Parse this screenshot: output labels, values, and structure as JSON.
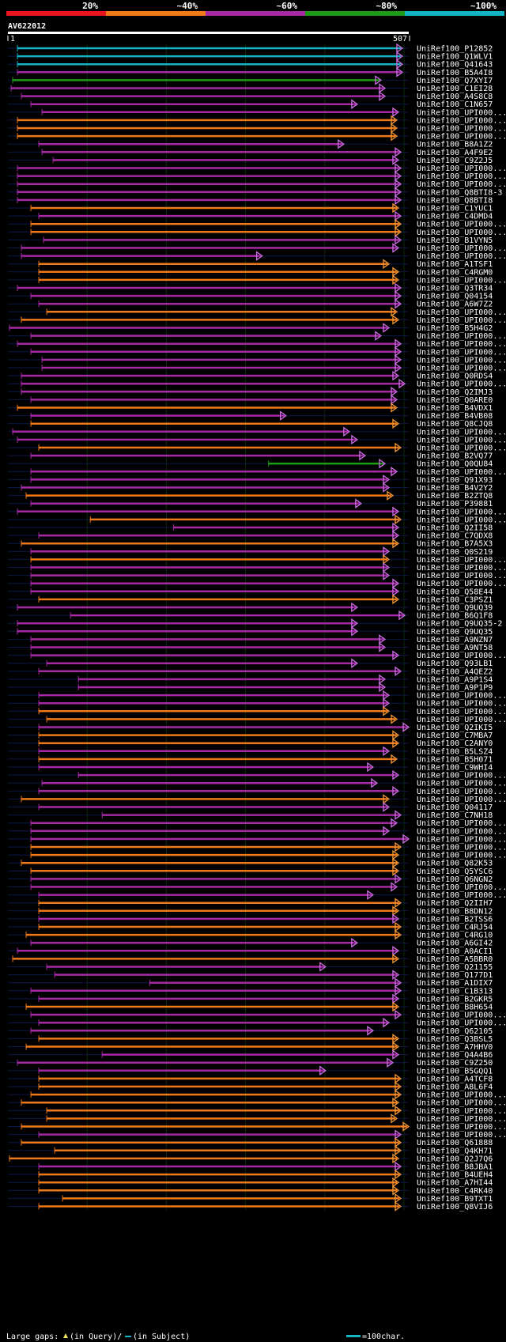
{
  "chart_data": {
    "type": "alignment-overview",
    "query_name": "AV622012",
    "query_length": 507,
    "axis_start_label": "1",
    "axis_end_label": "507",
    "identity_scale": [
      {
        "label": "20%",
        "color": "#e8141e"
      },
      {
        "label": "~40%",
        "color": "#f07a18"
      },
      {
        "label": "~60%",
        "color": "#a62aa4"
      },
      {
        "label": "~80%",
        "color": "#1e9a14"
      },
      {
        "label": "~100%",
        "color": "#14b4c4"
      }
    ],
    "legend": {
      "gaps_text": "Large gaps:",
      "query_text": "(in Query)/",
      "subject_text": "(in Subject)",
      "scale_text": "=100char."
    },
    "hits": [
      {
        "id": "UniRef100_P12852",
        "start": 13,
        "end": 497,
        "identity": 100
      },
      {
        "id": "UniRef100_Q1WLV1",
        "start": 13,
        "end": 497,
        "identity": 100
      },
      {
        "id": "UniRef100_Q41643",
        "start": 13,
        "end": 497,
        "identity": 100
      },
      {
        "id": "UniRef100_B5A4I8",
        "start": 13,
        "end": 497,
        "identity": 60
      },
      {
        "id": "UniRef100_Q7XYI7",
        "start": 7,
        "end": 470,
        "identity": 80
      },
      {
        "id": "UniRef100_C1EI28",
        "start": 5,
        "end": 475,
        "identity": 60
      },
      {
        "id": "UniRef100_A4S8C8",
        "start": 18,
        "end": 475,
        "identity": 60
      },
      {
        "id": "UniRef100_C1N657",
        "start": 30,
        "end": 440,
        "identity": 60
      },
      {
        "id": "UniRef100_UPI000...",
        "start": 44,
        "end": 492,
        "identity": 60
      },
      {
        "id": "UniRef100_UPI000...",
        "start": 13,
        "end": 490,
        "identity": 40
      },
      {
        "id": "UniRef100_UPI000...",
        "start": 13,
        "end": 490,
        "identity": 40
      },
      {
        "id": "UniRef100_UPI000...",
        "start": 13,
        "end": 490,
        "identity": 40
      },
      {
        "id": "UniRef100_B8A1Z2",
        "start": 40,
        "end": 423,
        "identity": 60
      },
      {
        "id": "UniRef100_A4F9E2",
        "start": 44,
        "end": 495,
        "identity": 60
      },
      {
        "id": "UniRef100_C9Z2J5",
        "start": 58,
        "end": 492,
        "identity": 60
      },
      {
        "id": "UniRef100_UPI000...",
        "start": 13,
        "end": 495,
        "identity": 60
      },
      {
        "id": "UniRef100_UPI000...",
        "start": 13,
        "end": 495,
        "identity": 60
      },
      {
        "id": "UniRef100_UPI000...",
        "start": 13,
        "end": 495,
        "identity": 60
      },
      {
        "id": "UniRef100_Q8BTI8-3",
        "start": 13,
        "end": 495,
        "identity": 60
      },
      {
        "id": "UniRef100_Q8BTI8",
        "start": 13,
        "end": 495,
        "identity": 60
      },
      {
        "id": "UniRef100_C1YUC1",
        "start": 30,
        "end": 492,
        "identity": 40
      },
      {
        "id": "UniRef100_C4DMD4",
        "start": 40,
        "end": 495,
        "identity": 60
      },
      {
        "id": "UniRef100_UPI000...",
        "start": 30,
        "end": 495,
        "identity": 40
      },
      {
        "id": "UniRef100_UPI000...",
        "start": 30,
        "end": 495,
        "identity": 40
      },
      {
        "id": "UniRef100_B1VYN5",
        "start": 46,
        "end": 495,
        "identity": 60
      },
      {
        "id": "UniRef100_UPI000...",
        "start": 18,
        "end": 492,
        "identity": 60
      },
      {
        "id": "UniRef100_UPI000...",
        "start": 18,
        "end": 320,
        "identity": 60
      },
      {
        "id": "UniRef100_A1TSF1",
        "start": 40,
        "end": 480,
        "identity": 40
      },
      {
        "id": "UniRef100_C4RGM0",
        "start": 40,
        "end": 492,
        "identity": 40
      },
      {
        "id": "UniRef100_UPI000...",
        "start": 40,
        "end": 492,
        "identity": 40
      },
      {
        "id": "UniRef100_Q3TR34",
        "start": 13,
        "end": 495,
        "identity": 60
      },
      {
        "id": "UniRef100_Q04154",
        "start": 30,
        "end": 495,
        "identity": 60
      },
      {
        "id": "UniRef100_A6W7Z2",
        "start": 40,
        "end": 495,
        "identity": 60
      },
      {
        "id": "UniRef100_UPI000...",
        "start": 50,
        "end": 490,
        "identity": 40
      },
      {
        "id": "UniRef100_UPI000...",
        "start": 18,
        "end": 492,
        "identity": 40
      },
      {
        "id": "UniRef100_B5H4G2",
        "start": 3,
        "end": 480,
        "identity": 60
      },
      {
        "id": "UniRef100_UPI000...",
        "start": 30,
        "end": 470,
        "identity": 60
      },
      {
        "id": "UniRef100_UPI000...",
        "start": 13,
        "end": 495,
        "identity": 60
      },
      {
        "id": "UniRef100_UPI000...",
        "start": 30,
        "end": 495,
        "identity": 60
      },
      {
        "id": "UniRef100_UPI000...",
        "start": 44,
        "end": 495,
        "identity": 60
      },
      {
        "id": "UniRef100_UPI000...",
        "start": 44,
        "end": 495,
        "identity": 60
      },
      {
        "id": "UniRef100_Q0RDS4",
        "start": 18,
        "end": 492,
        "identity": 60
      },
      {
        "id": "UniRef100_UPI000...",
        "start": 18,
        "end": 500,
        "identity": 60
      },
      {
        "id": "UniRef100_Q2IMJ3",
        "start": 18,
        "end": 490,
        "identity": 60
      },
      {
        "id": "UniRef100_Q0ARE0",
        "start": 30,
        "end": 490,
        "identity": 60
      },
      {
        "id": "UniRef100_B4VDX1",
        "start": 13,
        "end": 490,
        "identity": 40
      },
      {
        "id": "UniRef100_B4VB08",
        "start": 30,
        "end": 350,
        "identity": 60
      },
      {
        "id": "UniRef100_Q8CJQ8",
        "start": 30,
        "end": 492,
        "identity": 40
      },
      {
        "id": "UniRef100_UPI000...",
        "start": 7,
        "end": 430,
        "identity": 60
      },
      {
        "id": "UniRef100_UPI000...",
        "start": 13,
        "end": 440,
        "identity": 60
      },
      {
        "id": "UniRef100_UPI000...",
        "start": 40,
        "end": 495,
        "identity": 40
      },
      {
        "id": "UniRef100_B2VQ77",
        "start": 30,
        "end": 450,
        "identity": 60
      },
      {
        "id": "UniRef100_Q0QU84",
        "start": 330,
        "end": 475,
        "identity": 80
      },
      {
        "id": "UniRef100_UPI000...",
        "start": 30,
        "end": 490,
        "identity": 60
      },
      {
        "id": "UniRef100_Q91X93",
        "start": 30,
        "end": 480,
        "identity": 60
      },
      {
        "id": "UniRef100_B4V2Y2",
        "start": 18,
        "end": 480,
        "identity": 60
      },
      {
        "id": "UniRef100_B2ZTQ8",
        "start": 24,
        "end": 485,
        "identity": 40
      },
      {
        "id": "UniRef100_P39881",
        "start": 30,
        "end": 445,
        "identity": 60
      },
      {
        "id": "UniRef100_UPI000...",
        "start": 13,
        "end": 492,
        "identity": 60
      },
      {
        "id": "UniRef100_UPI000...",
        "start": 105,
        "end": 495,
        "identity": 40
      },
      {
        "id": "UniRef100_Q2II58",
        "start": 210,
        "end": 492,
        "identity": 60
      },
      {
        "id": "UniRef100_C7QDX8",
        "start": 40,
        "end": 492,
        "identity": 60
      },
      {
        "id": "UniRef100_B7A5X3",
        "start": 18,
        "end": 492,
        "identity": 40
      },
      {
        "id": "UniRef100_Q0S219",
        "start": 30,
        "end": 480,
        "identity": 60
      },
      {
        "id": "UniRef100_UPI000...",
        "start": 30,
        "end": 480,
        "identity": 40
      },
      {
        "id": "UniRef100_UPI000...",
        "start": 30,
        "end": 480,
        "identity": 60
      },
      {
        "id": "UniRef100_UPI000...",
        "start": 30,
        "end": 480,
        "identity": 60
      },
      {
        "id": "UniRef100_UPI000...",
        "start": 30,
        "end": 492,
        "identity": 60
      },
      {
        "id": "UniRef100_Q58E44",
        "start": 30,
        "end": 492,
        "identity": 60
      },
      {
        "id": "UniRef100_C3PSZ1",
        "start": 40,
        "end": 492,
        "identity": 40
      },
      {
        "id": "UniRef100_Q9UQ39",
        "start": 13,
        "end": 440,
        "identity": 60
      },
      {
        "id": "UniRef100_B6Q1F8",
        "start": 80,
        "end": 500,
        "identity": 60
      },
      {
        "id": "UniRef100_Q9UQ35-2",
        "start": 13,
        "end": 440,
        "identity": 60
      },
      {
        "id": "UniRef100_Q9UQ35",
        "start": 13,
        "end": 440,
        "identity": 60
      },
      {
        "id": "UniRef100_A9NZN7",
        "start": 30,
        "end": 475,
        "identity": 60
      },
      {
        "id": "UniRef100_A9NT58",
        "start": 30,
        "end": 475,
        "identity": 60
      },
      {
        "id": "UniRef100_UPI000...",
        "start": 30,
        "end": 492,
        "identity": 60
      },
      {
        "id": "UniRef100_Q93LB1",
        "start": 50,
        "end": 440,
        "identity": 60
      },
      {
        "id": "UniRef100_A4QEZ2",
        "start": 40,
        "end": 495,
        "identity": 60
      },
      {
        "id": "UniRef100_A9P1S4",
        "start": 90,
        "end": 475,
        "identity": 60
      },
      {
        "id": "UniRef100_A9P1P9",
        "start": 90,
        "end": 475,
        "identity": 60
      },
      {
        "id": "UniRef100_UPI000...",
        "start": 40,
        "end": 480,
        "identity": 60
      },
      {
        "id": "UniRef100_UPI000...",
        "start": 40,
        "end": 480,
        "identity": 60
      },
      {
        "id": "UniRef100_UPI000...",
        "start": 40,
        "end": 480,
        "identity": 40
      },
      {
        "id": "UniRef100_UPI000...",
        "start": 50,
        "end": 490,
        "identity": 40
      },
      {
        "id": "UniRef100_Q2IKI5",
        "start": 40,
        "end": 505,
        "identity": 60
      },
      {
        "id": "UniRef100_C7MBA7",
        "start": 40,
        "end": 492,
        "identity": 40
      },
      {
        "id": "UniRef100_C2ANY0",
        "start": 40,
        "end": 492,
        "identity": 40
      },
      {
        "id": "UniRef100_B5LSZ4",
        "start": 40,
        "end": 480,
        "identity": 60
      },
      {
        "id": "UniRef100_B5H071",
        "start": 40,
        "end": 490,
        "identity": 40
      },
      {
        "id": "UniRef100_C9WHI4",
        "start": 40,
        "end": 460,
        "identity": 60
      },
      {
        "id": "UniRef100_UPI000...",
        "start": 90,
        "end": 492,
        "identity": 60
      },
      {
        "id": "UniRef100_UPI000...",
        "start": 44,
        "end": 465,
        "identity": 60
      },
      {
        "id": "UniRef100_UPI000...",
        "start": 40,
        "end": 492,
        "identity": 60
      },
      {
        "id": "UniRef100_UPI000...",
        "start": 18,
        "end": 480,
        "identity": 40
      },
      {
        "id": "UniRef100_Q04117",
        "start": 40,
        "end": 480,
        "identity": 60
      },
      {
        "id": "UniRef100_C7NH18",
        "start": 120,
        "end": 495,
        "identity": 60
      },
      {
        "id": "UniRef100_UPI000...",
        "start": 30,
        "end": 490,
        "identity": 60
      },
      {
        "id": "UniRef100_UPI000...",
        "start": 30,
        "end": 480,
        "identity": 60
      },
      {
        "id": "UniRef100_UPI000...",
        "start": 30,
        "end": 505,
        "identity": 60
      },
      {
        "id": "UniRef100_UPI000...",
        "start": 30,
        "end": 495,
        "identity": 40
      },
      {
        "id": "UniRef100_UPI000...",
        "start": 30,
        "end": 492,
        "identity": 40
      },
      {
        "id": "UniRef100_Q82K53",
        "start": 18,
        "end": 492,
        "identity": 40
      },
      {
        "id": "UniRef100_Q5YSC6",
        "start": 30,
        "end": 492,
        "identity": 40
      },
      {
        "id": "UniRef100_Q6NGN2",
        "start": 30,
        "end": 495,
        "identity": 60
      },
      {
        "id": "UniRef100_UPI000...",
        "start": 30,
        "end": 490,
        "identity": 60
      },
      {
        "id": "UniRef100_UPI000...",
        "start": 40,
        "end": 460,
        "identity": 60
      },
      {
        "id": "UniRef100_Q2IIH7",
        "start": 40,
        "end": 495,
        "identity": 40
      },
      {
        "id": "UniRef100_B8DN12",
        "start": 40,
        "end": 492,
        "identity": 40
      },
      {
        "id": "UniRef100_B2TSS6",
        "start": 40,
        "end": 492,
        "identity": 60
      },
      {
        "id": "UniRef100_C4RJ54",
        "start": 40,
        "end": 495,
        "identity": 40
      },
      {
        "id": "UniRef100_C4RG10",
        "start": 24,
        "end": 495,
        "identity": 40
      },
      {
        "id": "UniRef100_A6GI42",
        "start": 30,
        "end": 440,
        "identity": 60
      },
      {
        "id": "UniRef100_A0ACI1",
        "start": 13,
        "end": 492,
        "identity": 60
      },
      {
        "id": "UniRef100_A5BBR0",
        "start": 7,
        "end": 492,
        "identity": 40
      },
      {
        "id": "UniRef100_Q21155",
        "start": 50,
        "end": 400,
        "identity": 60
      },
      {
        "id": "UniRef100_Q177D1",
        "start": 60,
        "end": 492,
        "identity": 60
      },
      {
        "id": "UniRef100_A1DIX7",
        "start": 180,
        "end": 495,
        "identity": 60
      },
      {
        "id": "UniRef100_C1B313",
        "start": 30,
        "end": 495,
        "identity": 60
      },
      {
        "id": "UniRef100_B2GKR5",
        "start": 40,
        "end": 492,
        "identity": 60
      },
      {
        "id": "UniRef100_B8H654",
        "start": 24,
        "end": 492,
        "identity": 40
      },
      {
        "id": "UniRef100_UPI000...",
        "start": 30,
        "end": 495,
        "identity": 60
      },
      {
        "id": "UniRef100_UPI000...",
        "start": 40,
        "end": 480,
        "identity": 60
      },
      {
        "id": "UniRef100_Q62105",
        "start": 30,
        "end": 460,
        "identity": 60
      },
      {
        "id": "UniRef100_Q3BSL5",
        "start": 40,
        "end": 492,
        "identity": 40
      },
      {
        "id": "UniRef100_A7HHV0",
        "start": 24,
        "end": 492,
        "identity": 40
      },
      {
        "id": "UniRef100_Q4A4B6",
        "start": 120,
        "end": 492,
        "identity": 60
      },
      {
        "id": "UniRef100_C9Z250",
        "start": 13,
        "end": 485,
        "identity": 60
      },
      {
        "id": "UniRef100_B5GQQ1",
        "start": 40,
        "end": 400,
        "identity": 60
      },
      {
        "id": "UniRef100_A4TCF8",
        "start": 40,
        "end": 495,
        "identity": 40
      },
      {
        "id": "UniRef100_A8L6F4",
        "start": 40,
        "end": 495,
        "identity": 40
      },
      {
        "id": "UniRef100_UPI000...",
        "start": 30,
        "end": 495,
        "identity": 40
      },
      {
        "id": "UniRef100_UPI000...",
        "start": 18,
        "end": 492,
        "identity": 40
      },
      {
        "id": "UniRef100_UPI000...",
        "start": 50,
        "end": 495,
        "identity": 40
      },
      {
        "id": "UniRef100_UPI000...",
        "start": 50,
        "end": 490,
        "identity": 40
      },
      {
        "id": "UniRef100_UPI000...",
        "start": 18,
        "end": 505,
        "identity": 40
      },
      {
        "id": "UniRef100_UPI000...",
        "start": 40,
        "end": 495,
        "identity": 60
      },
      {
        "id": "UniRef100_Q61888",
        "start": 18,
        "end": 495,
        "identity": 40
      },
      {
        "id": "UniRef100_Q4KH71",
        "start": 60,
        "end": 495,
        "identity": 40
      },
      {
        "id": "UniRef100_Q2J7Q6",
        "start": 3,
        "end": 492,
        "identity": 40
      },
      {
        "id": "UniRef100_B8JBA1",
        "start": 40,
        "end": 495,
        "identity": 60
      },
      {
        "id": "UniRef100_B4UEH4",
        "start": 40,
        "end": 495,
        "identity": 40
      },
      {
        "id": "UniRef100_A7HI44",
        "start": 40,
        "end": 492,
        "identity": 40
      },
      {
        "id": "UniRef100_C4RK40",
        "start": 40,
        "end": 492,
        "identity": 40
      },
      {
        "id": "UniRef100_B9TXT1",
        "start": 70,
        "end": 495,
        "identity": 40
      },
      {
        "id": "UniRef100_Q8VIJ6",
        "start": 40,
        "end": 495,
        "identity": 40
      }
    ]
  }
}
